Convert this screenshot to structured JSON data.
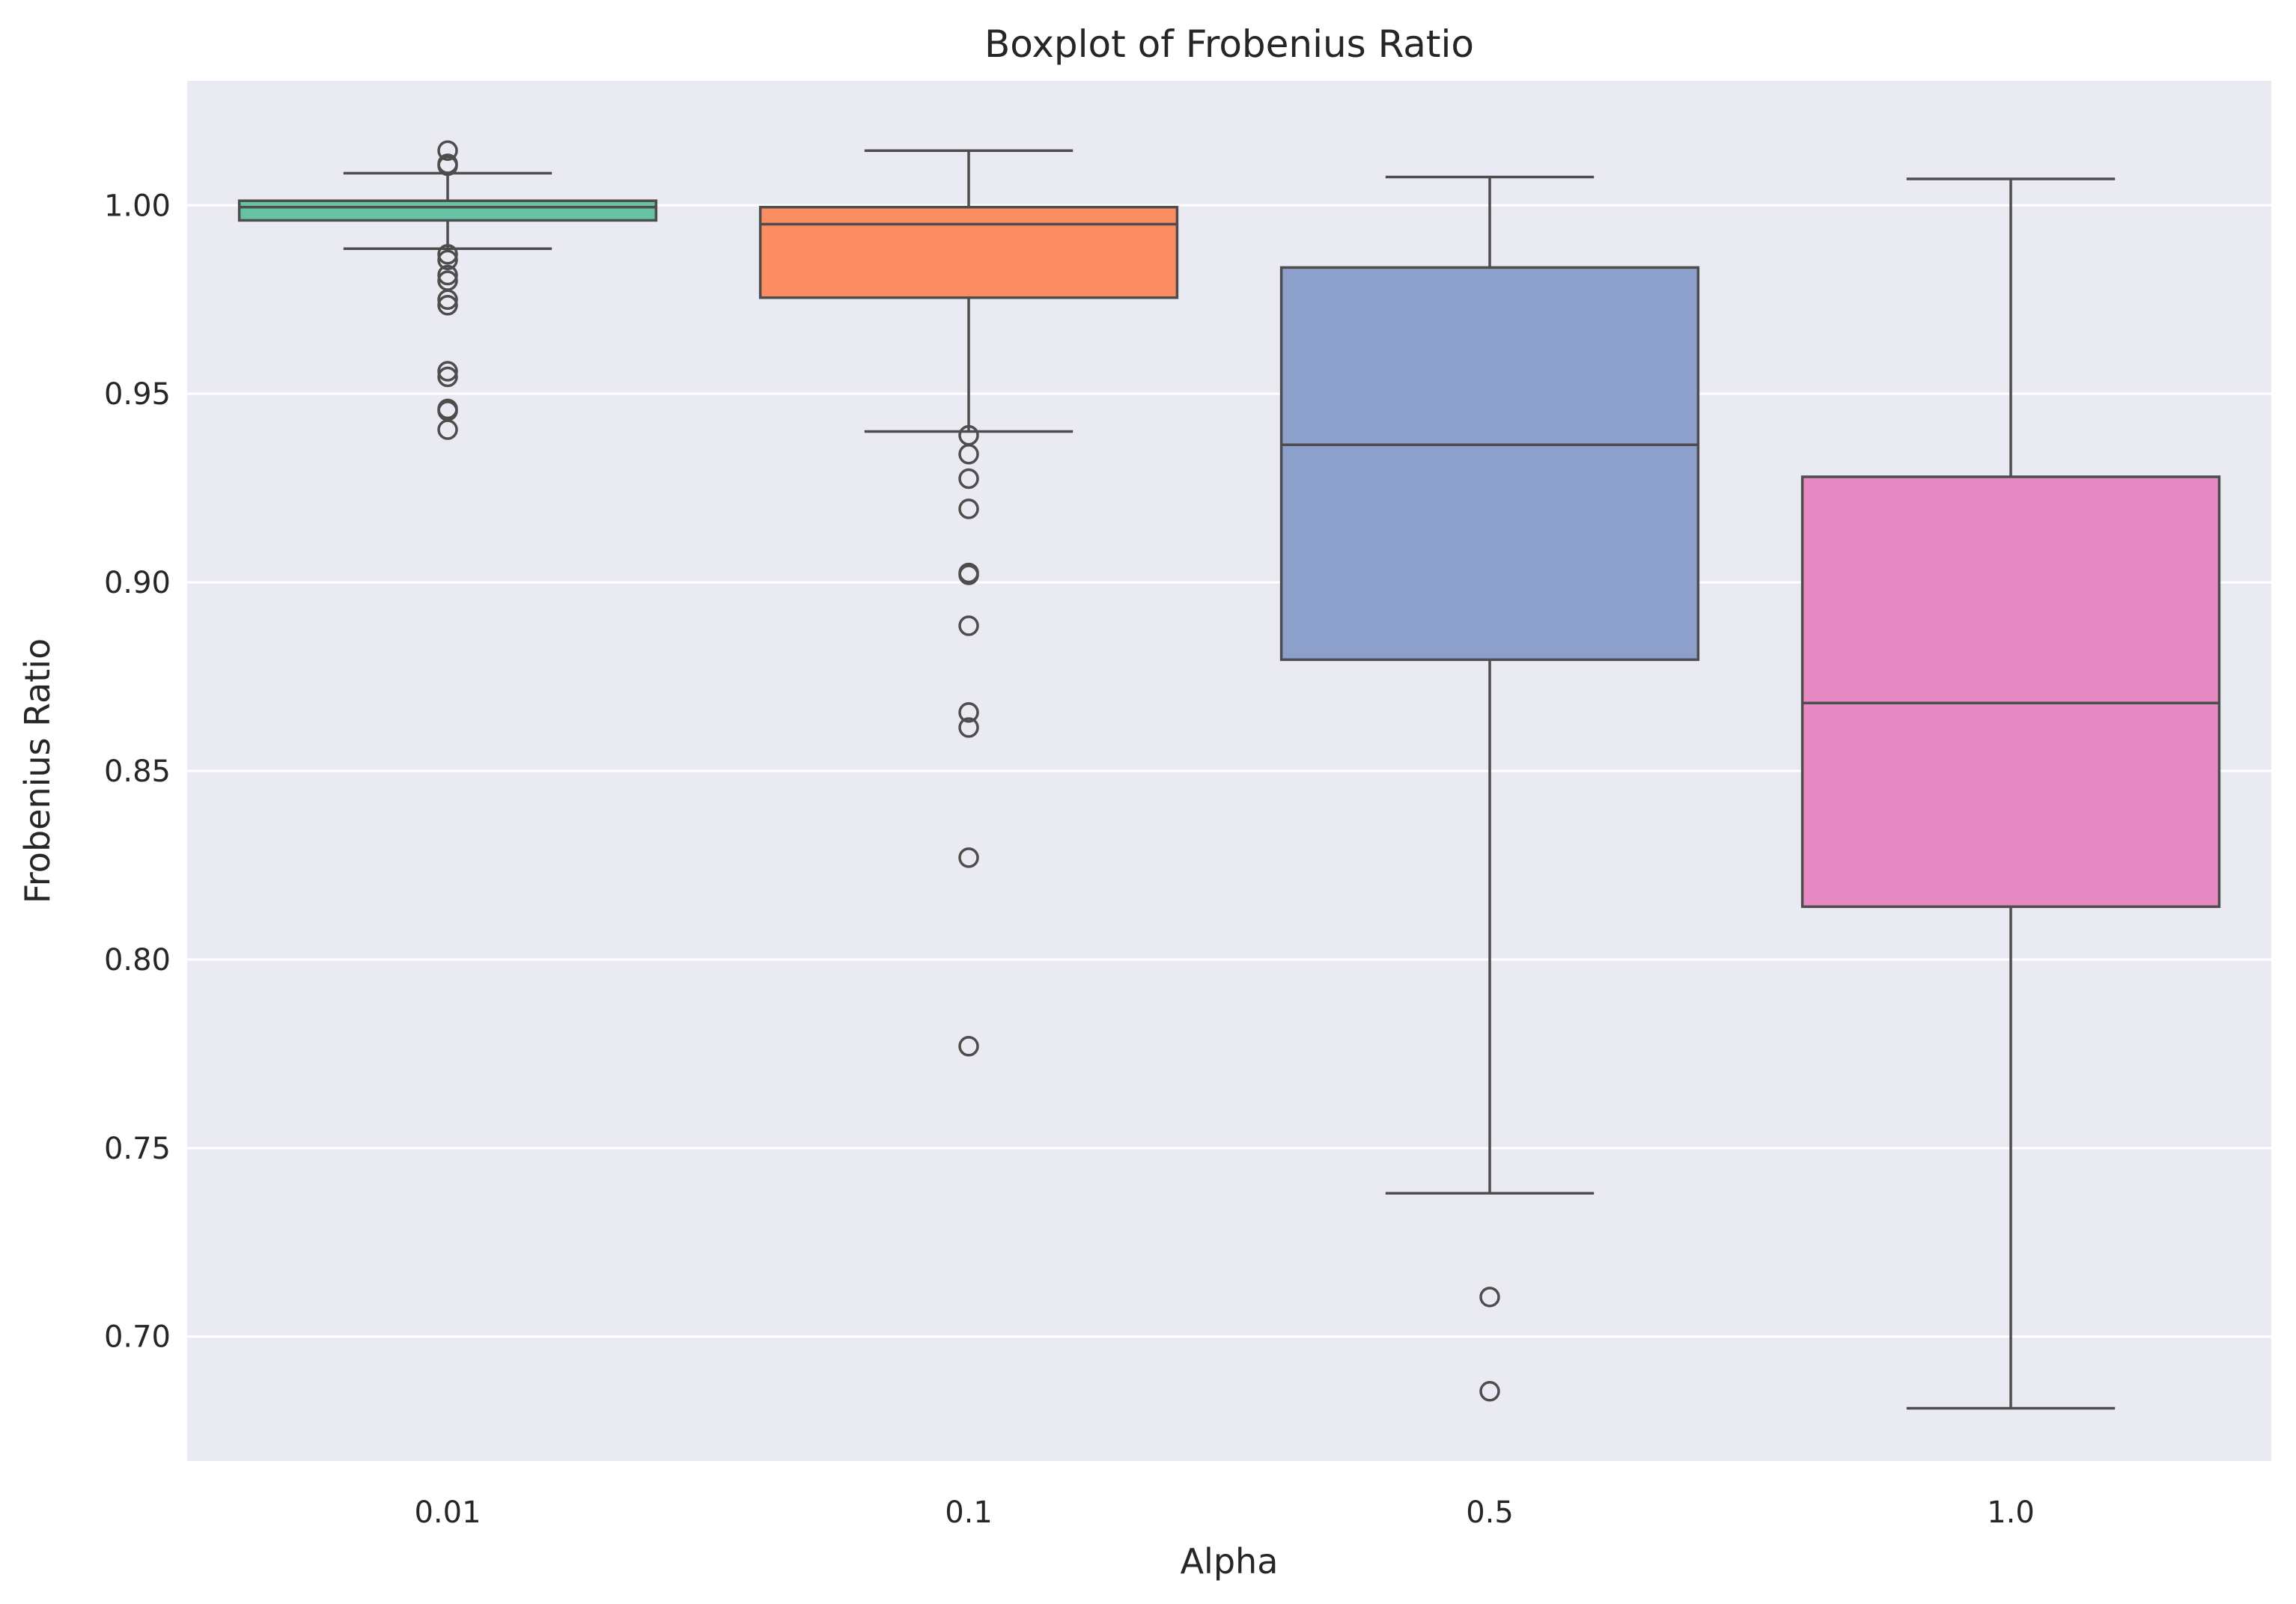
{
  "chart_data": {
    "type": "boxplot",
    "title": "Boxplot of Frobenius Ratio",
    "xlabel": "Alpha",
    "ylabel": "Frobenius Ratio",
    "ylim": [
      0.667,
      1.033
    ],
    "yticks": [
      "0.70",
      "0.75",
      "0.80",
      "0.85",
      "0.90",
      "0.95",
      "1.00"
    ],
    "ytick_values": [
      0.7,
      0.75,
      0.8,
      0.85,
      0.9,
      0.95,
      1.0
    ],
    "grid": "horizontal",
    "background": "#eaeaf2",
    "categories": [
      "0.01",
      "0.1",
      "0.5",
      "1.0"
    ],
    "boxes": [
      {
        "category": "0.01",
        "color": "#66c2a5",
        "whisker_low": 0.9885,
        "q1": 0.996,
        "median": 0.9995,
        "q3": 1.0012,
        "whisker_high": 1.0085,
        "outliers": [
          1.0145,
          1.011,
          1.0105,
          0.987,
          0.9855,
          0.9815,
          0.98,
          0.975,
          0.9735,
          0.956,
          0.9545,
          0.946,
          0.9455,
          0.9405
        ]
      },
      {
        "category": "0.1",
        "color": "#fc8d62",
        "whisker_low": 0.94,
        "q1": 0.9755,
        "median": 0.995,
        "q3": 0.9995,
        "whisker_high": 1.0145,
        "outliers": [
          0.939,
          0.934,
          0.9275,
          0.9195,
          0.9025,
          0.902,
          0.8885,
          0.8655,
          0.8615,
          0.827,
          0.777
        ]
      },
      {
        "category": "0.5",
        "color": "#8da0cb",
        "whisker_low": 0.738,
        "q1": 0.8795,
        "median": 0.9365,
        "q3": 0.9835,
        "whisker_high": 1.0075,
        "outliers": [
          0.7105,
          0.6855
        ]
      },
      {
        "category": "1.0",
        "color": "#e78ac3",
        "whisker_low": 0.681,
        "q1": 0.814,
        "median": 0.868,
        "q3": 0.928,
        "whisker_high": 1.007,
        "outliers": []
      }
    ]
  }
}
